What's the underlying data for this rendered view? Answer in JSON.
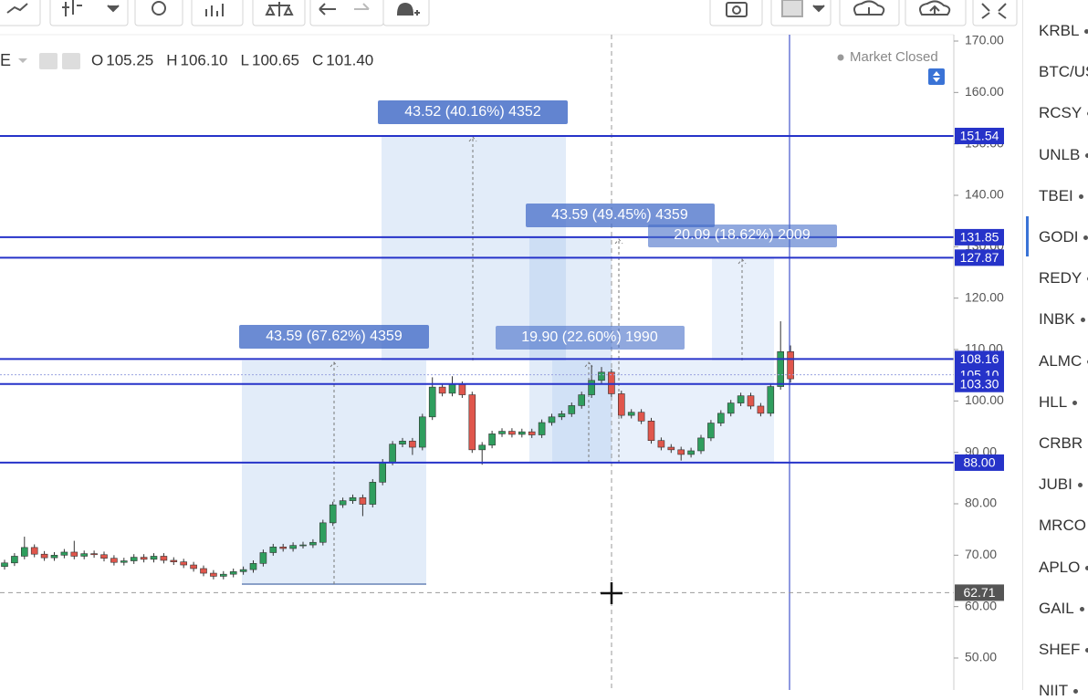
{
  "header": {
    "symbol": "E",
    "ohlc": [
      {
        "label": "O",
        "value": "105.25"
      },
      {
        "label": "H",
        "value": "106.10"
      },
      {
        "label": "L",
        "value": "100.65"
      },
      {
        "label": "C",
        "value": "101.40"
      }
    ],
    "status": "Market Closed"
  },
  "chart_data": {
    "type": "candlestick",
    "open": [
      67.8,
      68.5,
      69.8,
      71.5,
      70.2,
      69.5,
      70.0,
      70.6,
      69.8,
      70.3,
      70.1,
      69.4,
      68.6,
      68.9,
      69.6,
      69.2,
      69.8,
      69.0,
      68.7,
      68.1,
      67.4,
      66.5,
      65.9,
      66.3,
      66.8,
      67.2,
      68.4,
      70.5,
      71.6,
      71.3,
      71.9,
      72.0,
      72.5,
      76.3,
      79.8,
      80.6,
      81.2,
      79.9,
      84.2,
      88.1,
      91.6,
      92.2,
      91.0,
      96.9,
      102.7,
      101.5,
      103.2,
      101.2,
      90.5,
      91.4,
      93.6,
      94.1,
      93.5,
      94.0,
      93.4,
      95.8,
      96.9,
      97.5,
      99.1,
      101.2,
      104.0,
      105.6,
      101.4,
      97.2,
      97.8,
      96.1,
      92.3,
      91.0,
      90.5,
      89.6,
      90.3,
      92.8,
      95.7,
      97.6,
      99.6,
      101.0,
      99.0,
      97.6,
      102.8,
      109.6
    ],
    "high": [
      69.1,
      70.4,
      73.6,
      72.1,
      70.8,
      70.6,
      71.2,
      72.8,
      70.9,
      70.9,
      70.7,
      70.0,
      69.5,
      70.2,
      70.2,
      70.4,
      70.4,
      69.6,
      69.3,
      68.7,
      68.0,
      67.1,
      66.9,
      67.4,
      67.8,
      69.0,
      71.1,
      72.2,
      72.2,
      72.5,
      72.6,
      73.1,
      76.9,
      80.4,
      81.2,
      81.8,
      81.8,
      84.8,
      88.7,
      92.2,
      92.8,
      92.8,
      97.5,
      104.6,
      103.3,
      104.8,
      103.8,
      101.8,
      92.0,
      94.2,
      94.7,
      94.7,
      94.6,
      94.6,
      96.4,
      97.5,
      98.1,
      99.7,
      101.8,
      107.0,
      106.6,
      106.2,
      102.0,
      98.4,
      98.4,
      96.7,
      92.9,
      91.6,
      91.1,
      90.9,
      93.4,
      96.3,
      98.2,
      100.2,
      101.6,
      101.6,
      99.6,
      103.4,
      115.5,
      110.8
    ],
    "low": [
      67.2,
      67.9,
      69.2,
      69.6,
      68.9,
      68.9,
      69.4,
      69.2,
      69.2,
      69.5,
      68.8,
      68.0,
      68.0,
      68.3,
      68.6,
      68.6,
      68.4,
      68.1,
      67.5,
      66.8,
      65.9,
      65.3,
      65.3,
      65.7,
      66.2,
      66.6,
      67.8,
      69.9,
      70.7,
      70.7,
      71.3,
      71.4,
      71.9,
      75.7,
      79.2,
      80.0,
      77.6,
      79.3,
      83.6,
      87.5,
      91.0,
      89.5,
      90.4,
      96.3,
      100.9,
      100.9,
      100.6,
      89.9,
      87.6,
      90.8,
      93.0,
      92.9,
      92.9,
      92.8,
      92.8,
      95.2,
      96.3,
      96.9,
      98.5,
      100.6,
      103.4,
      100.8,
      96.6,
      96.6,
      95.5,
      91.7,
      90.4,
      89.9,
      88.4,
      89.0,
      89.7,
      92.2,
      95.1,
      97.0,
      99.0,
      98.4,
      97.0,
      97.0,
      102.2,
      103.6
    ],
    "close": [
      68.5,
      69.8,
      71.5,
      70.2,
      69.5,
      70.0,
      70.6,
      69.8,
      70.3,
      70.1,
      69.4,
      68.6,
      68.9,
      69.6,
      69.2,
      69.8,
      69.0,
      68.7,
      68.1,
      67.4,
      66.5,
      65.9,
      66.3,
      66.8,
      67.2,
      68.4,
      70.5,
      71.6,
      71.3,
      71.9,
      72.0,
      72.5,
      76.3,
      79.8,
      80.6,
      81.2,
      79.9,
      84.2,
      88.1,
      91.6,
      92.2,
      91.0,
      96.9,
      102.7,
      101.5,
      103.2,
      101.2,
      90.5,
      91.4,
      93.6,
      94.1,
      93.5,
      94.0,
      93.4,
      95.8,
      96.9,
      97.5,
      99.1,
      101.2,
      104.0,
      105.6,
      101.4,
      97.2,
      97.8,
      96.1,
      92.3,
      91.0,
      90.5,
      89.6,
      90.3,
      92.8,
      95.7,
      97.6,
      99.6,
      101.0,
      99.0,
      97.6,
      102.8,
      109.6,
      104.3
    ],
    "up_color": "#2f9e5e",
    "down_color": "#e0564c",
    "ylim": [
      50,
      170
    ],
    "yticks": [
      {
        "value": 170,
        "label": "170.00"
      },
      {
        "value": 160,
        "label": "160.00"
      },
      {
        "value": 150,
        "label": "150.00"
      },
      {
        "value": 140,
        "label": "140.00"
      },
      {
        "value": 130,
        "label": "130.00"
      },
      {
        "value": 120,
        "label": "120.00"
      },
      {
        "value": 110,
        "label": "110.00"
      },
      {
        "value": 100,
        "label": "100.00"
      },
      {
        "value": 90,
        "label": "90.00"
      },
      {
        "value": 80,
        "label": "80.00"
      },
      {
        "value": 70,
        "label": "70.00"
      },
      {
        "value": 60,
        "label": "60.00"
      },
      {
        "value": 50,
        "label": "50.00"
      }
    ],
    "levels": [
      151.54,
      131.85,
      127.87,
      108.16,
      {
        "value": 105.1,
        "label": "105.10"
      },
      {
        "value": 103.3,
        "label": "103.30"
      },
      {
        "value": 88,
        "label": "88.00"
      }
    ],
    "level_color": "#2633c9",
    "crosshair_price": 62.71,
    "measurements": [
      "43.52 (40.16%) 4352",
      "43.59 (49.45%) 4359",
      "20.09 (18.62%) 2009",
      "43.59 (67.62%) 4359",
      "19.90 (22.60%) 1990"
    ]
  },
  "watchlist": [
    "KRBL",
    "BTC/US",
    "RCSY",
    "UNLB",
    "TBEI",
    "GODI",
    "REDY",
    "INBK",
    "ALMC",
    "HLL",
    "CRBR",
    "JUBI",
    "MRCO",
    "APLO",
    "GAIL",
    "SHEF",
    "NIIT"
  ]
}
